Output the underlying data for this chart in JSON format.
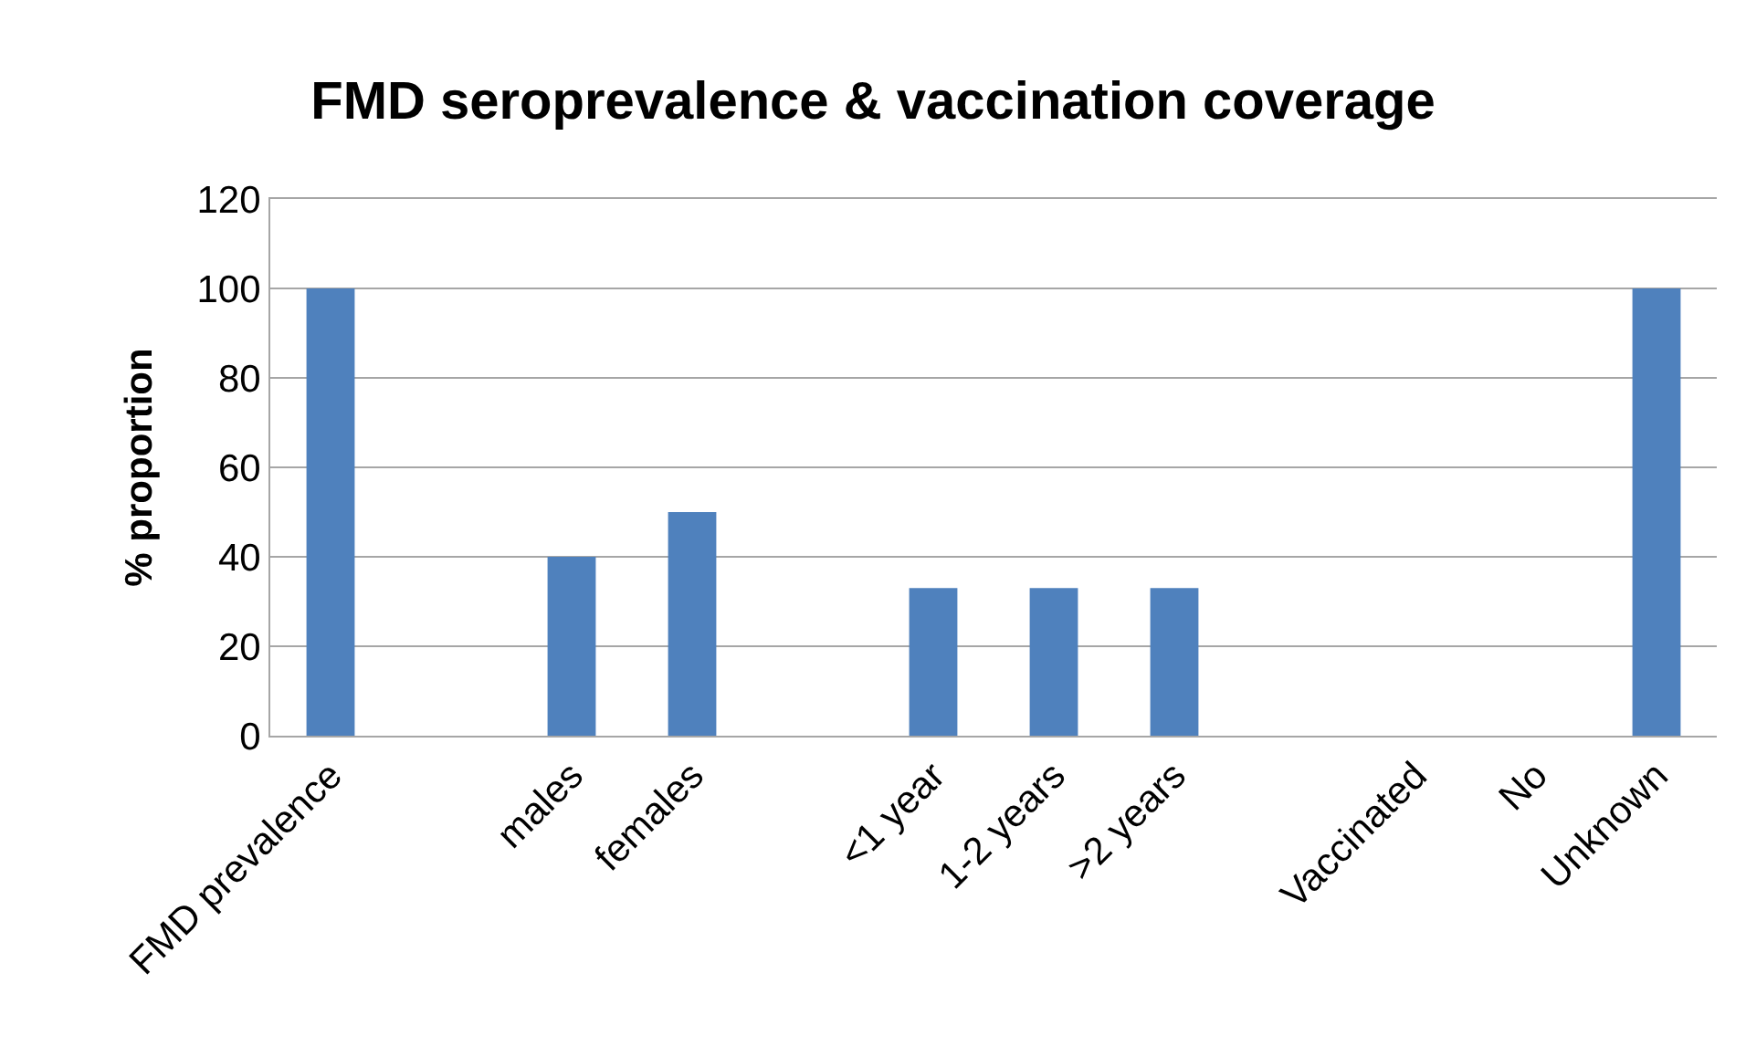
{
  "chart_data": {
    "type": "bar",
    "title": "FMD seroprevalence & vaccination coverage",
    "ylabel": "% proportion",
    "categories": [
      "FMD prevalence",
      null,
      "males",
      "females",
      null,
      "<1 year",
      "1-2 years",
      ">2 years",
      null,
      "Vaccinated",
      "No",
      "Unknown"
    ],
    "values": [
      100,
      null,
      40,
      50,
      null,
      33,
      33,
      33,
      null,
      0,
      0,
      100
    ],
    "color": "#4f81bd",
    "ylim": [
      0,
      120
    ],
    "yticks": [
      0,
      20,
      40,
      60,
      80,
      100,
      120
    ],
    "grid": "y"
  }
}
